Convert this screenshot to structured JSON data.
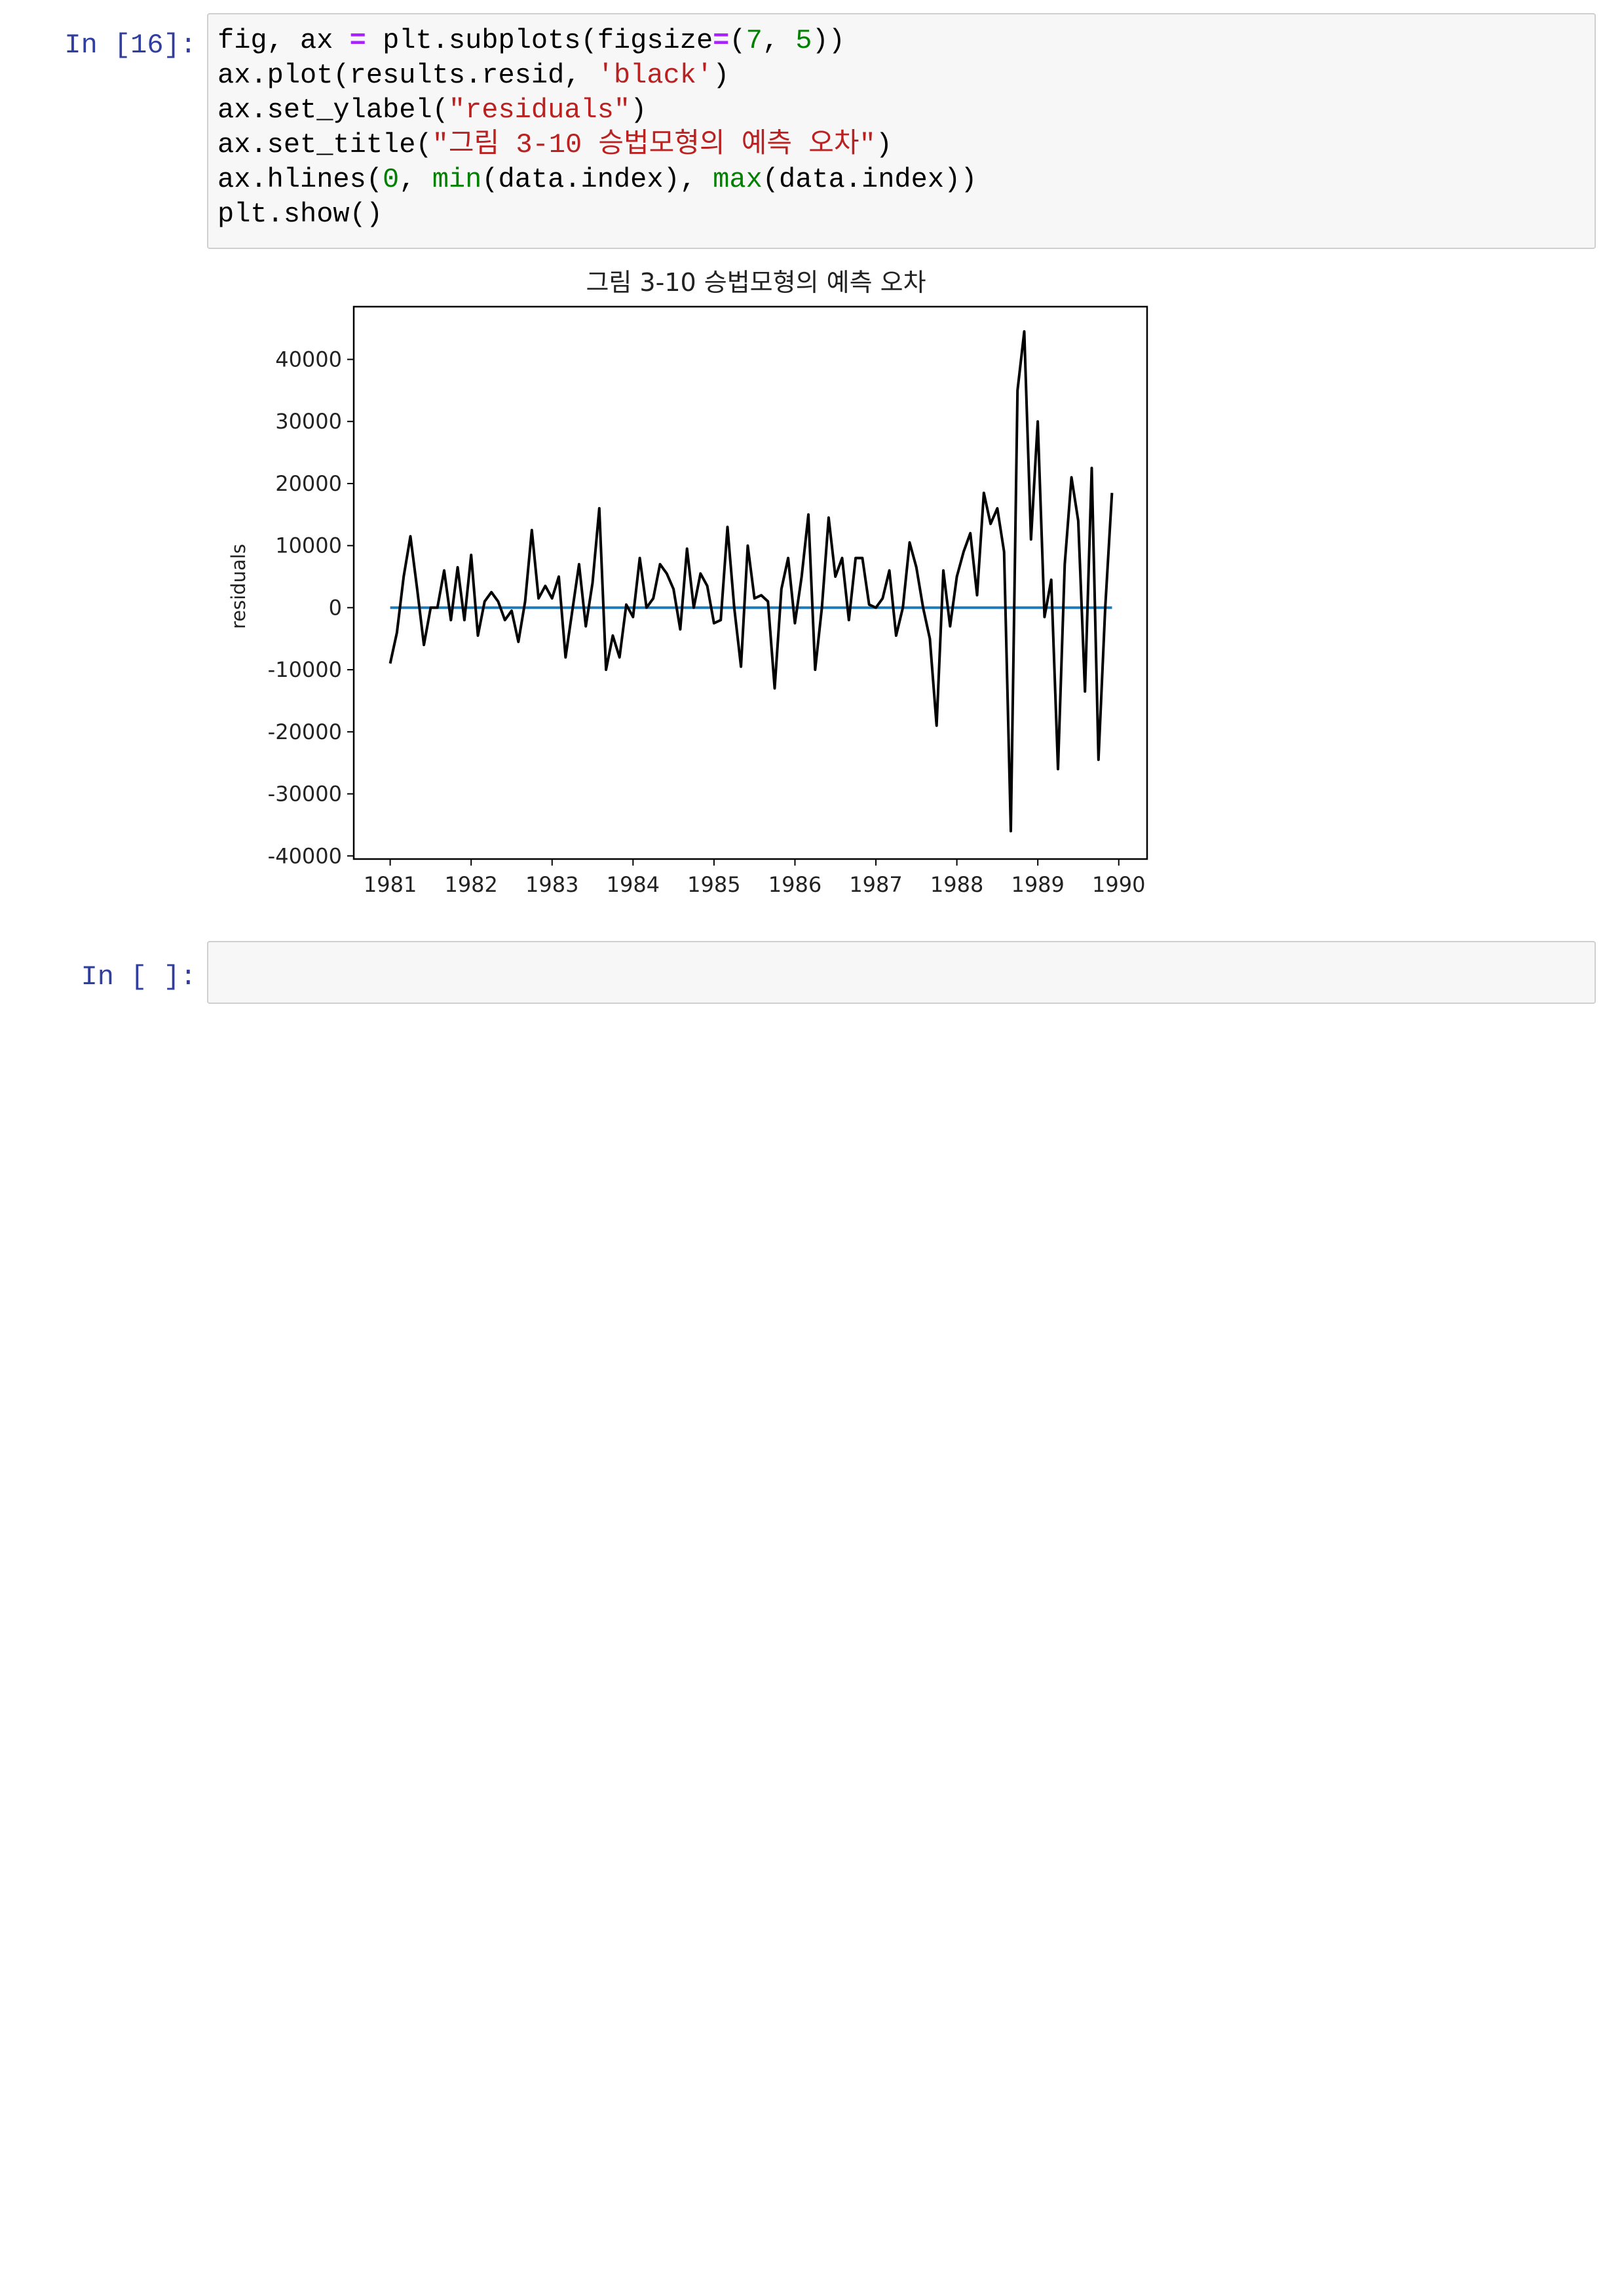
{
  "cells": [
    {
      "prompt": "In [16]:",
      "code_lines": [
        [
          {
            "t": "fig, ax ",
            "c": ""
          },
          {
            "t": "=",
            "c": "o"
          },
          {
            "t": " plt.subplots(figsize",
            "c": ""
          },
          {
            "t": "=",
            "c": "o"
          },
          {
            "t": "(",
            "c": ""
          },
          {
            "t": "7",
            "c": "n"
          },
          {
            "t": ", ",
            "c": ""
          },
          {
            "t": "5",
            "c": "n"
          },
          {
            "t": "))",
            "c": ""
          }
        ],
        [
          {
            "t": "ax.plot(results.resid, ",
            "c": ""
          },
          {
            "t": "'black'",
            "c": "s"
          },
          {
            "t": ")",
            "c": ""
          }
        ],
        [
          {
            "t": "ax.set_ylabel(",
            "c": ""
          },
          {
            "t": "\"residuals\"",
            "c": "s"
          },
          {
            "t": ")",
            "c": ""
          }
        ],
        [
          {
            "t": "ax.set_title(",
            "c": ""
          },
          {
            "t": "\"그림 3-10 승법모형의 예측 오차\"",
            "c": "s"
          },
          {
            "t": ")",
            "c": ""
          }
        ],
        [
          {
            "t": "ax.hlines(",
            "c": ""
          },
          {
            "t": "0",
            "c": "n"
          },
          {
            "t": ", ",
            "c": ""
          },
          {
            "t": "min",
            "c": "k"
          },
          {
            "t": "(data.index), ",
            "c": ""
          },
          {
            "t": "max",
            "c": "k"
          },
          {
            "t": "(data.index))",
            "c": ""
          }
        ],
        [
          {
            "t": "plt.show()",
            "c": ""
          }
        ]
      ]
    },
    {
      "prompt": "In [ ]:",
      "code_lines": []
    }
  ],
  "colors": {
    "prompt": "#303f9f",
    "string": "#ba2121",
    "builtin": "#008000",
    "operator": "#aa22ff",
    "residual_line": "#000000",
    "zero_line": "#1f77b4"
  },
  "chart_data": {
    "type": "line",
    "title": "그림 3-10 승법모형의 예측 오차",
    "ylabel": "residuals",
    "xlabel": "",
    "xlim": [
      1980.55,
      1990.35
    ],
    "ylim": [
      -40500,
      48500
    ],
    "xticks": [
      1981,
      1982,
      1983,
      1984,
      1985,
      1986,
      1987,
      1988,
      1989,
      1990
    ],
    "yticks": [
      -40000,
      -30000,
      -20000,
      -10000,
      0,
      10000,
      20000,
      30000,
      40000
    ],
    "legend": "none",
    "grid": false,
    "hline": {
      "y": 0,
      "xmin": 1981.0,
      "xmax": 1989.917
    },
    "series": [
      {
        "x_start": 1981.0,
        "x_step": 0.08333,
        "values": [
          -9000,
          -4000,
          5000,
          11500,
          3000,
          -6000,
          0,
          0,
          6000,
          -2000,
          6500,
          -2000,
          8500,
          -4500,
          1000,
          2500,
          1000,
          -2000,
          -500,
          -5500,
          1000,
          12500,
          1500,
          3500,
          1500,
          5000,
          -8000,
          -500,
          7000,
          -3000,
          4000,
          16000,
          -10000,
          -4500,
          -8000,
          500,
          -1500,
          8000,
          0,
          1500,
          7000,
          5500,
          3000,
          -3500,
          9500,
          0,
          5500,
          3500,
          -2500,
          -2000,
          13000,
          0,
          -9500,
          10000,
          1500,
          2000,
          1000,
          -13000,
          3000,
          8000,
          -2500,
          5000,
          15000,
          -10000,
          0,
          14500,
          5000,
          8000,
          -2000,
          8000,
          8000,
          500,
          0,
          1500,
          6000,
          -4500,
          0,
          10500,
          6500,
          0,
          -5000,
          -19000,
          6000,
          -3000,
          5000,
          9000,
          12000,
          2000,
          18500,
          13500,
          16000,
          9000,
          -36000,
          35000,
          44500,
          11000,
          30000,
          -1500,
          4500,
          -26000,
          7000,
          21000,
          14000,
          -13500,
          22500,
          -24500,
          0,
          18500
        ]
      }
    ]
  }
}
